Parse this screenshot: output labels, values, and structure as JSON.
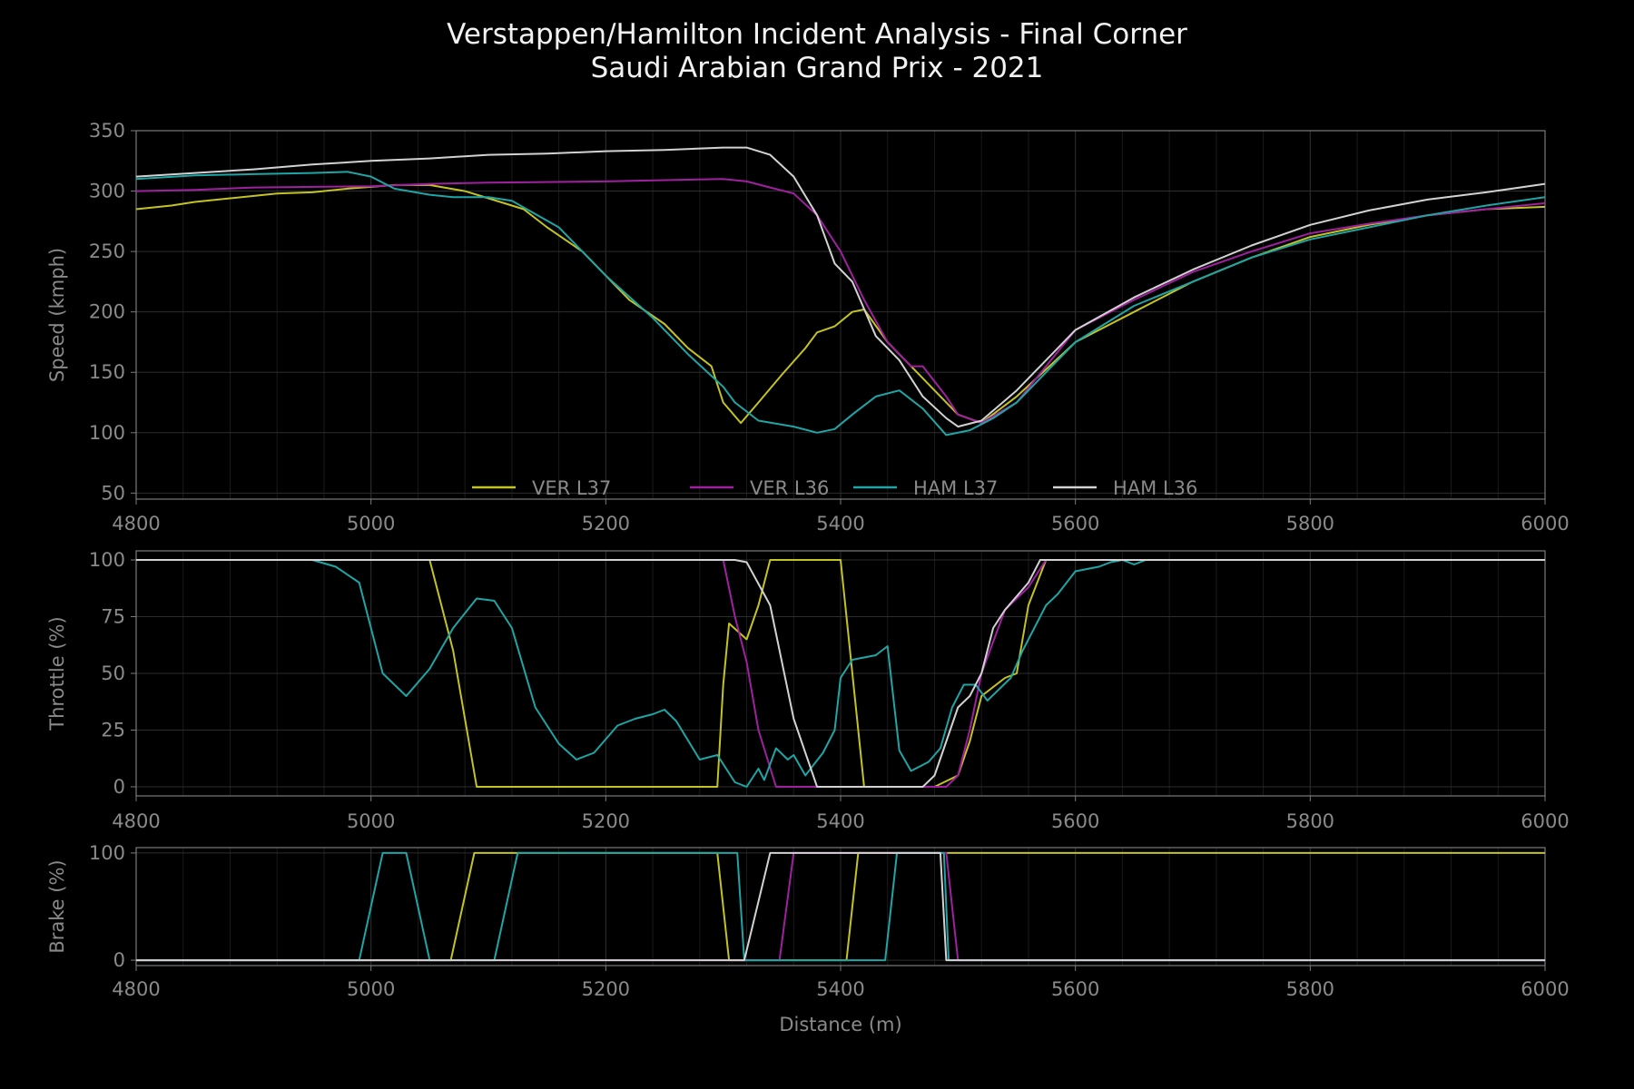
{
  "title_line1": "Verstappen/Hamilton Incident Analysis - Final Corner",
  "title_line2": "Saudi Arabian Grand Prix - 2021",
  "chart_data": {
    "type": "line",
    "xlabel": "Distance (m)",
    "xlim": [
      4800,
      6000
    ],
    "xticks": [
      4800,
      5000,
      5200,
      5400,
      5600,
      5800,
      6000
    ],
    "legend_location": "lower center of speed panel",
    "series_styles": [
      {
        "name": "VER L37",
        "color": "#c3c322"
      },
      {
        "name": "VER L36",
        "color": "#a020a0"
      },
      {
        "name": "HAM L37",
        "color": "#1fa5a5"
      },
      {
        "name": "HAM L36",
        "color": "#d2d2d2"
      }
    ],
    "panels": [
      {
        "id": "speed",
        "ylabel": "Speed (kmph)",
        "ylim": [
          45,
          350
        ],
        "yticks": [
          50,
          100,
          150,
          200,
          250,
          300,
          350
        ],
        "series": [
          {
            "name": "VER L37",
            "x": [
              4800,
              4830,
              4850,
              4880,
              4920,
              4950,
              4980,
              5020,
              5050,
              5080,
              5100,
              5130,
              5150,
              5180,
              5200,
              5220,
              5250,
              5270,
              5290,
              5300,
              5315,
              5330,
              5350,
              5370,
              5380,
              5395,
              5410,
              5420,
              5440,
              5460,
              5480,
              5500,
              5520,
              5550,
              5600,
              5650,
              5700,
              5750,
              5800,
              5850,
              5900,
              5950,
              6000
            ],
            "y": [
              285,
              288,
              291,
              294,
              298,
              299,
              302,
              305,
              305,
              300,
              294,
              285,
              270,
              250,
              230,
              210,
              190,
              170,
              155,
              125,
              108,
              125,
              148,
              170,
              183,
              188,
              200,
              202,
              175,
              155,
              135,
              115,
              108,
              130,
              175,
              200,
              225,
              245,
              262,
              272,
              280,
              285,
              287
            ]
          },
          {
            "name": "VER L36",
            "x": [
              4800,
              4850,
              4900,
              5000,
              5050,
              5100,
              5200,
              5300,
              5320,
              5340,
              5360,
              5380,
              5400,
              5420,
              5440,
              5460,
              5470,
              5490,
              5500,
              5520,
              5550,
              5600,
              5650,
              5700,
              5750,
              5800,
              5850,
              5900,
              5950,
              6000
            ],
            "y": [
              300,
              301,
              303,
              304,
              306,
              307,
              308,
              310,
              308,
              303,
              298,
              280,
              250,
              210,
              175,
              155,
              155,
              130,
              115,
              108,
              125,
              185,
              210,
              233,
              250,
              265,
              273,
              280,
              285,
              290
            ]
          },
          {
            "name": "HAM L37",
            "x": [
              4800,
              4850,
              4900,
              4950,
              4980,
              5000,
              5020,
              5050,
              5070,
              5100,
              5120,
              5160,
              5200,
              5240,
              5270,
              5300,
              5310,
              5330,
              5360,
              5380,
              5395,
              5410,
              5430,
              5450,
              5470,
              5490,
              5510,
              5530,
              5550,
              5600,
              5650,
              5700,
              5750,
              5800,
              5850,
              5900,
              5950,
              6000
            ],
            "y": [
              310,
              313,
              314,
              315,
              316,
              312,
              302,
              297,
              295,
              295,
              292,
              270,
              230,
              195,
              165,
              138,
              125,
              110,
              105,
              100,
              103,
              115,
              130,
              135,
              120,
              98,
              102,
              112,
              125,
              175,
              205,
              225,
              245,
              260,
              270,
              280,
              288,
              295
            ]
          },
          {
            "name": "HAM L36",
            "x": [
              4800,
              4850,
              4900,
              4950,
              5000,
              5050,
              5100,
              5150,
              5200,
              5250,
              5300,
              5320,
              5340,
              5360,
              5380,
              5395,
              5410,
              5430,
              5450,
              5470,
              5490,
              5500,
              5520,
              5550,
              5600,
              5650,
              5700,
              5750,
              5800,
              5850,
              5900,
              5950,
              6000
            ],
            "y": [
              312,
              315,
              318,
              322,
              325,
              327,
              330,
              331,
              333,
              334,
              336,
              336,
              330,
              312,
              280,
              240,
              225,
              180,
              160,
              130,
              112,
              105,
              110,
              135,
              185,
              212,
              235,
              255,
              272,
              284,
              293,
              299,
              306
            ]
          }
        ]
      },
      {
        "id": "throttle",
        "ylabel": "Throttle (%)",
        "ylim": [
          -4,
          104
        ],
        "yticks": [
          0,
          25,
          50,
          75,
          100
        ],
        "series": [
          {
            "name": "VER L37",
            "x": [
              4800,
              5050,
              5070,
              5090,
              5295,
              5300,
              5305,
              5320,
              5330,
              5340,
              5400,
              5420,
              5440,
              5480,
              5500,
              5510,
              5520,
              5540,
              5550,
              5560,
              5575,
              6000
            ],
            "y": [
              100,
              100,
              60,
              0,
              0,
              45,
              72,
              65,
              80,
              100,
              100,
              0,
              0,
              0,
              5,
              20,
              40,
              48,
              50,
              80,
              100,
              100
            ]
          },
          {
            "name": "VER L36",
            "x": [
              4800,
              5300,
              5310,
              5320,
              5330,
              5345,
              5400,
              5440,
              5490,
              5500,
              5510,
              5520,
              5540,
              5560,
              5575,
              6000
            ],
            "y": [
              100,
              100,
              75,
              55,
              25,
              0,
              0,
              0,
              0,
              5,
              25,
              50,
              78,
              88,
              100,
              100
            ]
          },
          {
            "name": "HAM L37",
            "x": [
              4800,
              4950,
              4970,
              4990,
              5010,
              5030,
              5050,
              5070,
              5090,
              5105,
              5120,
              5140,
              5160,
              5175,
              5190,
              5210,
              5225,
              5240,
              5250,
              5260,
              5280,
              5295,
              5300,
              5310,
              5320,
              5330,
              5335,
              5345,
              5355,
              5360,
              5370,
              5385,
              5395,
              5400,
              5410,
              5420,
              5430,
              5440,
              5450,
              5460,
              5475,
              5485,
              5495,
              5505,
              5515,
              5525,
              5545,
              5555,
              5565,
              5575,
              5585,
              5600,
              5620,
              5630,
              5640,
              5650,
              5660,
              6000
            ],
            "y": [
              100,
              100,
              97,
              90,
              50,
              40,
              52,
              70,
              83,
              82,
              70,
              35,
              19,
              12,
              15,
              27,
              30,
              32,
              34,
              29,
              12,
              14,
              10,
              2,
              0,
              8,
              3,
              17,
              12,
              14,
              5,
              15,
              25,
              48,
              56,
              57,
              58,
              62,
              16,
              7,
              11,
              17,
              35,
              45,
              45,
              38,
              48,
              60,
              70,
              80,
              85,
              95,
              97,
              99,
              100,
              98,
              100,
              100
            ]
          },
          {
            "name": "HAM L36",
            "x": [
              4800,
              5310,
              5320,
              5340,
              5360,
              5380,
              5440,
              5470,
              5480,
              5490,
              5500,
              5510,
              5520,
              5530,
              5540,
              5560,
              5570,
              6000
            ],
            "y": [
              100,
              100,
              99,
              80,
              30,
              0,
              0,
              0,
              5,
              20,
              35,
              40,
              50,
              70,
              78,
              90,
              100,
              100
            ]
          }
        ]
      },
      {
        "id": "brake",
        "ylabel": "Brake (%)",
        "ylim": [
          -5,
          105
        ],
        "yticks": [
          0,
          100
        ],
        "series": [
          {
            "name": "VER L37",
            "x": [
              4800,
              5068,
              5088,
              5295,
              5305,
              5320,
              5405,
              5415,
              6000
            ],
            "y": [
              0,
              0,
              100,
              100,
              0,
              0,
              0,
              100,
              100
            ]
          },
          {
            "name": "VER L36",
            "x": [
              4800,
              5348,
              5360,
              5490,
              5500,
              6000
            ],
            "y": [
              0,
              0,
              100,
              100,
              0,
              0
            ]
          },
          {
            "name": "HAM L37",
            "x": [
              4800,
              4990,
              5010,
              5030,
              5050,
              5105,
              5125,
              5312,
              5318,
              5438,
              5448,
              5488,
              5492,
              6000
            ],
            "y": [
              0,
              0,
              100,
              100,
              0,
              0,
              100,
              100,
              0,
              0,
              100,
              100,
              0,
              0
            ]
          },
          {
            "name": "HAM L36",
            "x": [
              4800,
              5318,
              5340,
              5485,
              5490,
              6000
            ],
            "y": [
              0,
              0,
              100,
              100,
              0,
              0
            ]
          }
        ]
      }
    ]
  }
}
